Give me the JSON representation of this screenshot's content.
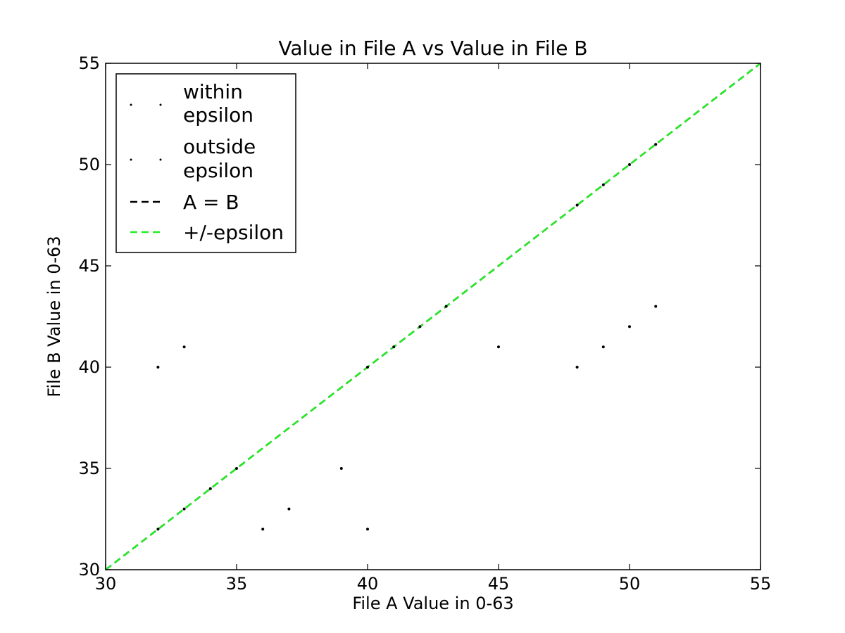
{
  "chart_data": {
    "type": "scatter",
    "title": "Value in File A vs Value in File B",
    "xlabel": "File A Value in 0-63",
    "ylabel": "File B Value in 0-63",
    "xlim": [
      30,
      55
    ],
    "ylim": [
      30,
      55
    ],
    "xticks": [
      "30",
      "35",
      "40",
      "45",
      "50",
      "55"
    ],
    "yticks": [
      "30",
      "35",
      "40",
      "45",
      "50",
      "55"
    ],
    "grid": false,
    "legend_position": "top-left",
    "legend": [
      {
        "label": "within epsilon",
        "style": "marker",
        "color": "#000000"
      },
      {
        "label": "outside epsilon",
        "style": "marker",
        "color": "#000000"
      },
      {
        "label": "A = B",
        "style": "dashed-line",
        "color": "#000000"
      },
      {
        "label": "+/-epsilon",
        "style": "dashed-line",
        "color": "#22ee22"
      }
    ],
    "series": [
      {
        "name": "within epsilon",
        "points": [
          [
            32,
            32
          ],
          [
            33,
            33
          ],
          [
            34,
            34
          ],
          [
            35,
            35
          ],
          [
            40,
            40
          ],
          [
            41,
            41
          ],
          [
            42,
            42
          ],
          [
            43,
            43
          ],
          [
            48,
            48
          ],
          [
            49,
            49
          ],
          [
            50,
            50
          ],
          [
            51,
            51
          ]
        ]
      },
      {
        "name": "outside epsilon",
        "points": [
          [
            32,
            40
          ],
          [
            33,
            41
          ],
          [
            36,
            32
          ],
          [
            37,
            33
          ],
          [
            39,
            35
          ],
          [
            40,
            32
          ],
          [
            45,
            41
          ],
          [
            48,
            40
          ],
          [
            49,
            41
          ],
          [
            50,
            42
          ],
          [
            51,
            43
          ]
        ]
      }
    ],
    "lines": [
      {
        "name": "A = B",
        "from": [
          30,
          30
        ],
        "to": [
          55,
          55
        ],
        "color": "#000000"
      },
      {
        "name": "+/-epsilon",
        "from": [
          30,
          30
        ],
        "to": [
          55,
          55
        ],
        "color": "#22ee22"
      }
    ]
  }
}
